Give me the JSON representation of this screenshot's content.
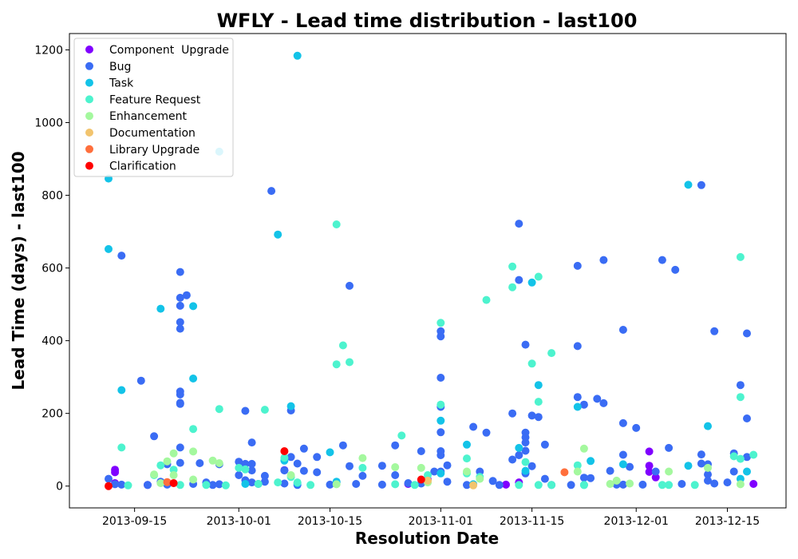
{
  "chart_data": {
    "type": "scatter",
    "title": "WFLY - Lead time distribution - last100",
    "xlabel": "Resolution Date",
    "ylabel": "Lead Time (days) - last100",
    "x_type": "date",
    "xlim": [
      "2013-09-05",
      "2013-12-24"
    ],
    "ylim": [
      -60,
      1245
    ],
    "x_ticks": [
      "2013-09-15",
      "2013-10-01",
      "2013-10-15",
      "2013-11-01",
      "2013-11-15",
      "2013-12-01",
      "2013-12-15"
    ],
    "y_ticks": [
      0,
      200,
      400,
      600,
      800,
      1000,
      1200
    ],
    "grid": false,
    "legend_position": "top-left",
    "series": [
      {
        "name": "Component  Upgrade",
        "color": "#8000ff",
        "points": [
          [
            "2013-09-12",
            45
          ],
          [
            "2013-09-12",
            38
          ],
          [
            "2013-09-12",
            8
          ],
          [
            "2013-09-17",
            3
          ],
          [
            "2013-09-20",
            8
          ],
          [
            "2013-10-08",
            44
          ],
          [
            "2013-10-27",
            6
          ],
          [
            "2013-10-30",
            18
          ],
          [
            "2013-11-11",
            4
          ],
          [
            "2013-11-13",
            10
          ],
          [
            "2013-12-03",
            95
          ],
          [
            "2013-12-03",
            56
          ],
          [
            "2013-12-03",
            39
          ],
          [
            "2013-12-04",
            24
          ],
          [
            "2013-12-19",
            6
          ]
        ]
      },
      {
        "name": "Bug",
        "color": "#3a6cf4",
        "points": [
          [
            "2013-09-11",
            20
          ],
          [
            "2013-09-12",
            5
          ],
          [
            "2013-09-13",
            634
          ],
          [
            "2013-09-13",
            4
          ],
          [
            "2013-09-16",
            290
          ],
          [
            "2013-09-17",
            3
          ],
          [
            "2013-09-18",
            137
          ],
          [
            "2013-09-19",
            12
          ],
          [
            "2013-09-20",
            60
          ],
          [
            "2013-09-20",
            4
          ],
          [
            "2013-09-22",
            589
          ],
          [
            "2013-09-22",
            518
          ],
          [
            "2013-09-22",
            496
          ],
          [
            "2013-09-22",
            451
          ],
          [
            "2013-09-22",
            433
          ],
          [
            "2013-09-22",
            260
          ],
          [
            "2013-09-22",
            252
          ],
          [
            "2013-09-22",
            229
          ],
          [
            "2013-09-22",
            226
          ],
          [
            "2013-09-22",
            106
          ],
          [
            "2013-09-22",
            64
          ],
          [
            "2013-09-23",
            525
          ],
          [
            "2013-09-24",
            6
          ],
          [
            "2013-09-25",
            63
          ],
          [
            "2013-09-26",
            10
          ],
          [
            "2013-09-27",
            3
          ],
          [
            "2013-09-28",
            5
          ],
          [
            "2013-09-28",
            60
          ],
          [
            "2013-10-01",
            67
          ],
          [
            "2013-10-01",
            30
          ],
          [
            "2013-10-02",
            207
          ],
          [
            "2013-10-02",
            61
          ],
          [
            "2013-10-02",
            16
          ],
          [
            "2013-10-03",
            120
          ],
          [
            "2013-10-03",
            61
          ],
          [
            "2013-10-03",
            43
          ],
          [
            "2013-10-03",
            10
          ],
          [
            "2013-10-04",
            6
          ],
          [
            "2013-10-05",
            28
          ],
          [
            "2013-10-05",
            12
          ],
          [
            "2013-10-06",
            812
          ],
          [
            "2013-10-08",
            43
          ],
          [
            "2013-10-08",
            7
          ],
          [
            "2013-10-09",
            208
          ],
          [
            "2013-10-09",
            80
          ],
          [
            "2013-10-10",
            62
          ],
          [
            "2013-10-10",
            3
          ],
          [
            "2013-10-11",
            103
          ],
          [
            "2013-10-11",
            42
          ],
          [
            "2013-10-13",
            80
          ],
          [
            "2013-10-13",
            38
          ],
          [
            "2013-10-15",
            4
          ],
          [
            "2013-10-16",
            10
          ],
          [
            "2013-10-17",
            112
          ],
          [
            "2013-10-18",
            551
          ],
          [
            "2013-10-18",
            55
          ],
          [
            "2013-10-19",
            6
          ],
          [
            "2013-10-20",
            28
          ],
          [
            "2013-10-23",
            56
          ],
          [
            "2013-10-23",
            4
          ],
          [
            "2013-10-25",
            112
          ],
          [
            "2013-10-25",
            30
          ],
          [
            "2013-10-27",
            8
          ],
          [
            "2013-10-29",
            96
          ],
          [
            "2013-10-29",
            7
          ],
          [
            "2013-10-31",
            40
          ],
          [
            "2013-11-01",
            426
          ],
          [
            "2013-11-01",
            412
          ],
          [
            "2013-11-01",
            298
          ],
          [
            "2013-11-01",
            218
          ],
          [
            "2013-11-01",
            148
          ],
          [
            "2013-11-01",
            96
          ],
          [
            "2013-11-01",
            85
          ],
          [
            "2013-11-01",
            40
          ],
          [
            "2013-11-02",
            57
          ],
          [
            "2013-11-02",
            12
          ],
          [
            "2013-11-05",
            3
          ],
          [
            "2013-11-06",
            163
          ],
          [
            "2013-11-07",
            40
          ],
          [
            "2013-11-08",
            147
          ],
          [
            "2013-11-09",
            14
          ],
          [
            "2013-11-10",
            3
          ],
          [
            "2013-11-12",
            200
          ],
          [
            "2013-11-12",
            73
          ],
          [
            "2013-11-13",
            722
          ],
          [
            "2013-11-13",
            567
          ],
          [
            "2013-11-13",
            85
          ],
          [
            "2013-11-14",
            389
          ],
          [
            "2013-11-14",
            147
          ],
          [
            "2013-11-14",
            134
          ],
          [
            "2013-11-14",
            120
          ],
          [
            "2013-11-14",
            97
          ],
          [
            "2013-11-14",
            35
          ],
          [
            "2013-11-15",
            194
          ],
          [
            "2013-11-15",
            55
          ],
          [
            "2013-11-16",
            190
          ],
          [
            "2013-11-17",
            114
          ],
          [
            "2013-11-17",
            20
          ],
          [
            "2013-11-18",
            3
          ],
          [
            "2013-11-21",
            3
          ],
          [
            "2013-11-22",
            606
          ],
          [
            "2013-11-22",
            385
          ],
          [
            "2013-11-22",
            245
          ],
          [
            "2013-11-23",
            224
          ],
          [
            "2013-11-23",
            23
          ],
          [
            "2013-11-24",
            22
          ],
          [
            "2013-11-25",
            240
          ],
          [
            "2013-11-26",
            622
          ],
          [
            "2013-11-26",
            228
          ],
          [
            "2013-11-27",
            42
          ],
          [
            "2013-11-28",
            4
          ],
          [
            "2013-11-29",
            430
          ],
          [
            "2013-11-29",
            173
          ],
          [
            "2013-11-29",
            86
          ],
          [
            "2013-11-29",
            4
          ],
          [
            "2013-11-30",
            53
          ],
          [
            "2013-12-01",
            160
          ],
          [
            "2013-12-02",
            4
          ],
          [
            "2013-12-04",
            40
          ],
          [
            "2013-12-05",
            622
          ],
          [
            "2013-12-06",
            105
          ],
          [
            "2013-12-07",
            595
          ],
          [
            "2013-12-08",
            6
          ],
          [
            "2013-12-11",
            828
          ],
          [
            "2013-12-11",
            87
          ],
          [
            "2013-12-11",
            62
          ],
          [
            "2013-12-12",
            60
          ],
          [
            "2013-12-12",
            32
          ],
          [
            "2013-12-12",
            15
          ],
          [
            "2013-12-13",
            426
          ],
          [
            "2013-12-13",
            7
          ],
          [
            "2013-12-15",
            10
          ],
          [
            "2013-12-16",
            90
          ],
          [
            "2013-12-16",
            40
          ],
          [
            "2013-12-17",
            278
          ],
          [
            "2013-12-18",
            186
          ],
          [
            "2013-12-18",
            420
          ],
          [
            "2013-12-18",
            80
          ]
        ]
      },
      {
        "name": "Task",
        "color": "#13c3e8",
        "points": [
          [
            "2013-09-11",
            846
          ],
          [
            "2013-09-11",
            652
          ],
          [
            "2013-09-13",
            264
          ],
          [
            "2013-09-19",
            488
          ],
          [
            "2013-09-24",
            296
          ],
          [
            "2013-09-24",
            495
          ],
          [
            "2013-09-28",
            920
          ],
          [
            "2013-10-02",
            6
          ],
          [
            "2013-10-07",
            692
          ],
          [
            "2013-10-08",
            70
          ],
          [
            "2013-10-09",
            220
          ],
          [
            "2013-10-10",
            1184
          ],
          [
            "2013-10-10",
            8
          ],
          [
            "2013-10-15",
            93
          ],
          [
            "2013-10-16",
            12
          ],
          [
            "2013-11-01",
            180
          ],
          [
            "2013-11-01",
            35
          ],
          [
            "2013-11-05",
            114
          ],
          [
            "2013-11-06",
            5
          ],
          [
            "2013-11-13",
            105
          ],
          [
            "2013-11-14",
            42
          ],
          [
            "2013-11-15",
            560
          ],
          [
            "2013-11-16",
            278
          ],
          [
            "2013-11-22",
            218
          ],
          [
            "2013-11-23",
            3
          ],
          [
            "2013-11-24",
            69
          ],
          [
            "2013-11-29",
            60
          ],
          [
            "2013-12-09",
            829
          ],
          [
            "2013-12-09",
            56
          ],
          [
            "2013-12-12",
            165
          ],
          [
            "2013-12-17",
            20
          ],
          [
            "2013-12-18",
            40
          ]
        ]
      },
      {
        "name": "Feature Request",
        "color": "#4df3ce",
        "points": [
          [
            "2013-09-13",
            106
          ],
          [
            "2013-09-14",
            2
          ],
          [
            "2013-09-18",
            30
          ],
          [
            "2013-09-19",
            57
          ],
          [
            "2013-09-21",
            45
          ],
          [
            "2013-09-22",
            3
          ],
          [
            "2013-09-24",
            157
          ],
          [
            "2013-09-26",
            3
          ],
          [
            "2013-09-28",
            212
          ],
          [
            "2013-09-29",
            2
          ],
          [
            "2013-10-01",
            50
          ],
          [
            "2013-10-02",
            46
          ],
          [
            "2013-10-04",
            6
          ],
          [
            "2013-10-05",
            210
          ],
          [
            "2013-10-07",
            10
          ],
          [
            "2013-10-08",
            78
          ],
          [
            "2013-10-09",
            25
          ],
          [
            "2013-10-10",
            10
          ],
          [
            "2013-10-12",
            3
          ],
          [
            "2013-10-16",
            720
          ],
          [
            "2013-10-16",
            335
          ],
          [
            "2013-10-17",
            387
          ],
          [
            "2013-10-18",
            341
          ],
          [
            "2013-10-20",
            50
          ],
          [
            "2013-10-25",
            5
          ],
          [
            "2013-10-26",
            139
          ],
          [
            "2013-10-28",
            3
          ],
          [
            "2013-10-30",
            30
          ],
          [
            "2013-11-01",
            449
          ],
          [
            "2013-11-01",
            224
          ],
          [
            "2013-11-05",
            76
          ],
          [
            "2013-11-05",
            35
          ],
          [
            "2013-11-07",
            25
          ],
          [
            "2013-11-08",
            512
          ],
          [
            "2013-11-12",
            604
          ],
          [
            "2013-11-12",
            547
          ],
          [
            "2013-11-13",
            3
          ],
          [
            "2013-11-14",
            66
          ],
          [
            "2013-11-15",
            337
          ],
          [
            "2013-11-16",
            576
          ],
          [
            "2013-11-16",
            232
          ],
          [
            "2013-11-16",
            3
          ],
          [
            "2013-11-18",
            366
          ],
          [
            "2013-11-18",
            3
          ],
          [
            "2013-11-22",
            57
          ],
          [
            "2013-11-23",
            3
          ],
          [
            "2013-12-05",
            3
          ],
          [
            "2013-12-06",
            3
          ],
          [
            "2013-12-10",
            3
          ],
          [
            "2013-12-16",
            82
          ],
          [
            "2013-12-17",
            630
          ],
          [
            "2013-12-17",
            245
          ],
          [
            "2013-12-17",
            75
          ],
          [
            "2013-12-19",
            86
          ]
        ]
      },
      {
        "name": "Enhancement",
        "color": "#a4f89e",
        "points": [
          [
            "2013-09-18",
            32
          ],
          [
            "2013-09-19",
            8
          ],
          [
            "2013-09-20",
            68
          ],
          [
            "2013-09-21",
            90
          ],
          [
            "2013-09-21",
            30
          ],
          [
            "2013-09-24",
            95
          ],
          [
            "2013-09-24",
            18
          ],
          [
            "2013-09-27",
            70
          ],
          [
            "2013-09-28",
            63
          ],
          [
            "2013-10-09",
            30
          ],
          [
            "2013-10-16",
            5
          ],
          [
            "2013-10-20",
            77
          ],
          [
            "2013-10-25",
            52
          ],
          [
            "2013-10-29",
            50
          ],
          [
            "2013-10-30",
            10
          ],
          [
            "2013-11-05",
            40
          ],
          [
            "2013-11-07",
            20
          ],
          [
            "2013-11-22",
            40
          ],
          [
            "2013-11-23",
            103
          ],
          [
            "2013-11-27",
            6
          ],
          [
            "2013-11-28",
            15
          ],
          [
            "2013-11-30",
            7
          ],
          [
            "2013-12-06",
            40
          ],
          [
            "2013-12-12",
            50
          ],
          [
            "2013-12-17",
            5
          ]
        ]
      },
      {
        "name": "Documentation",
        "color": "#f2c46e",
        "points": [
          [
            "2013-10-30",
            15
          ],
          [
            "2013-11-06",
            2
          ]
        ]
      },
      {
        "name": "Library Upgrade",
        "color": "#ff6f3c",
        "points": [
          [
            "2013-09-20",
            11
          ],
          [
            "2013-11-20",
            38
          ]
        ]
      },
      {
        "name": "Clarification",
        "color": "#ff0000",
        "points": [
          [
            "2013-09-11",
            0
          ],
          [
            "2013-09-21",
            8
          ],
          [
            "2013-10-08",
            96
          ],
          [
            "2013-10-29",
            18
          ]
        ]
      }
    ]
  }
}
